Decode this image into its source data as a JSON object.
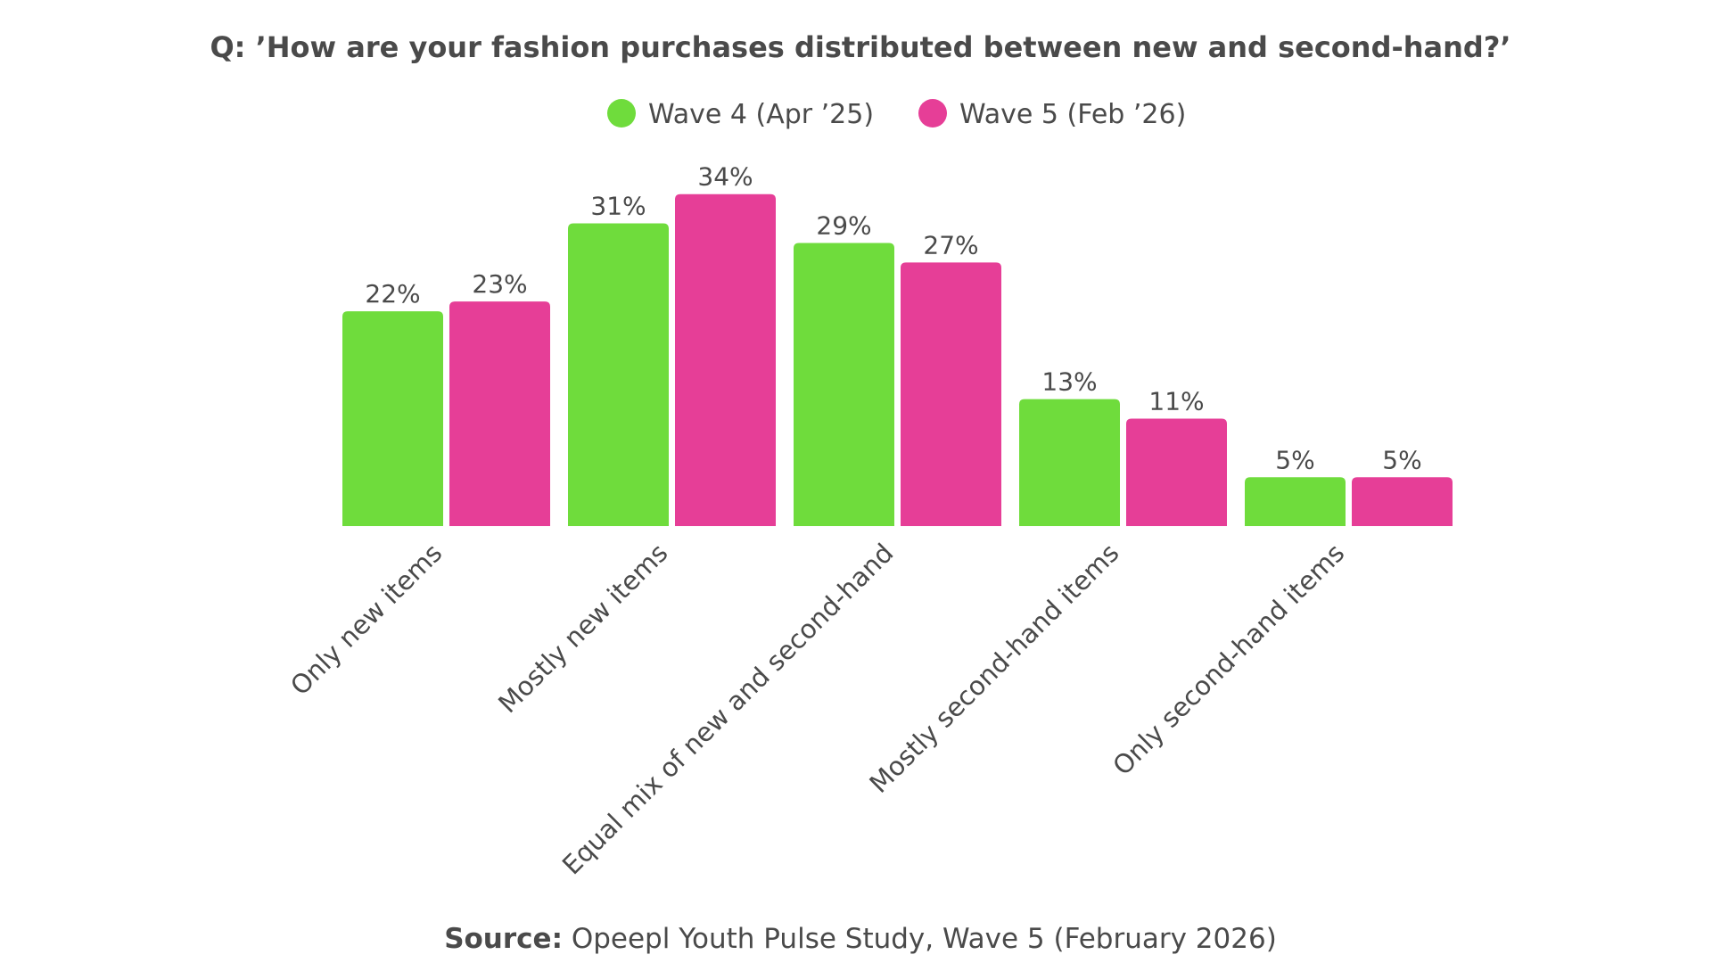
{
  "chart_data": {
    "type": "bar",
    "title": "Q: ’How are your fashion purchases distributed between new and second-hand?’",
    "categories": [
      "Only new items",
      "Mostly new items",
      "Equal mix of new and second-hand",
      "Mostly second-hand items",
      "Only second-hand items"
    ],
    "series": [
      {
        "name": "Wave 4 (Apr ’25)",
        "color": "#6fdc3c",
        "values": [
          22,
          31,
          29,
          13,
          5
        ],
        "labels": [
          "22%",
          "31%",
          "29%",
          "13%",
          "5%"
        ]
      },
      {
        "name": "Wave 5 (Feb ’26)",
        "color": "#e63e97",
        "values": [
          23,
          34,
          27,
          11,
          5
        ],
        "labels": [
          "23%",
          "34%",
          "27%",
          "11%",
          "5%"
        ]
      }
    ],
    "ylim": [
      0,
      36
    ],
    "xlabel": "",
    "ylabel": "",
    "grid": false,
    "legend_position": "top-center"
  },
  "source": {
    "label": "Source:",
    "text": " Opeepl Youth Pulse Study, Wave 5 (February 2026)"
  }
}
